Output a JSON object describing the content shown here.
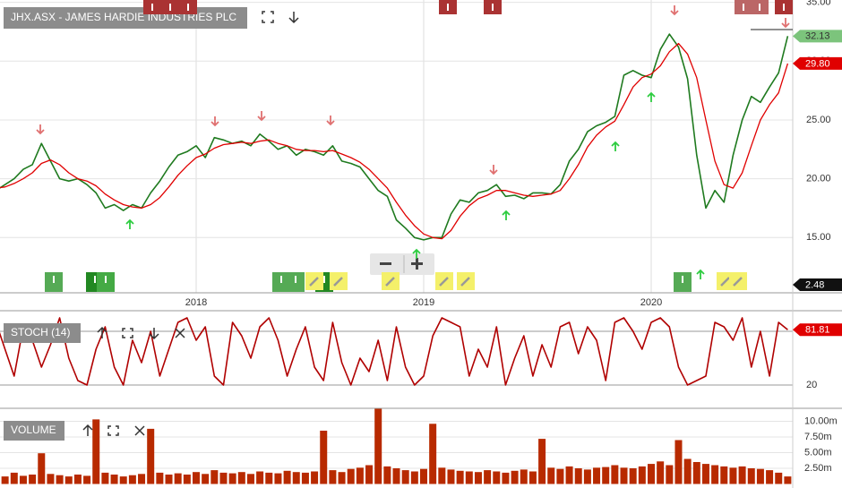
{
  "chart_data": [
    {
      "type": "line",
      "title": "JHX.ASX - JAMES HARDIE INDUSTRIES PLC",
      "categories": [
        null,
        null,
        null,
        null,
        null,
        null,
        null,
        null,
        null,
        null,
        null,
        null,
        null,
        null,
        null,
        null,
        null,
        null,
        null,
        null,
        null,
        null,
        "2018",
        null,
        null,
        null,
        null,
        null,
        null,
        null,
        null,
        null,
        null,
        null,
        null,
        null,
        null,
        null,
        null,
        null,
        null,
        null,
        null,
        null,
        null,
        null,
        null,
        "2019",
        null,
        null,
        null,
        null,
        null,
        null,
        null,
        null,
        null,
        null,
        null,
        null,
        null,
        null,
        null,
        null,
        null,
        null,
        null,
        null,
        null,
        null,
        null,
        null,
        "2020",
        null,
        null,
        null,
        null,
        null,
        null,
        null,
        null,
        null,
        null,
        null,
        null,
        null,
        null,
        null
      ],
      "series": [
        {
          "color": "#1f7a1f",
          "values": [
            19.0,
            19.5,
            20.0,
            20.8,
            21.2,
            23.0,
            21.5,
            20.0,
            19.8,
            20.0,
            19.5,
            18.8,
            17.5,
            17.8,
            17.3,
            17.8,
            17.5,
            18.8,
            19.8,
            21.0,
            22.0,
            22.3,
            22.8,
            21.8,
            23.5,
            23.3,
            23.0,
            23.2,
            22.8,
            23.8,
            23.2,
            22.5,
            22.8,
            22.0,
            22.5,
            22.3,
            22.0,
            22.8,
            21.5,
            21.3,
            21.0,
            20.0,
            19.0,
            18.5,
            16.5,
            15.8,
            15.0,
            14.8,
            15.0,
            15.0,
            17.0,
            18.2,
            18.0,
            18.8,
            19.0,
            19.5,
            18.5,
            18.6,
            18.3,
            18.8,
            18.8,
            18.7,
            19.5,
            21.5,
            22.5,
            24.0,
            24.5,
            24.8,
            25.3,
            28.8,
            29.2,
            28.8,
            28.6,
            31.0,
            32.3,
            31.2,
            28.5,
            22.0,
            17.5,
            19.0,
            18.0,
            22.0,
            25.0,
            27.0,
            26.5,
            27.8,
            29.0,
            32.13
          ]
        },
        {
          "color": "#e00000",
          "values": [
            19.2,
            19.3,
            19.6,
            20.0,
            20.5,
            21.3,
            21.6,
            21.2,
            20.5,
            20.0,
            19.8,
            19.4,
            18.7,
            18.2,
            17.8,
            17.6,
            17.5,
            17.8,
            18.4,
            19.3,
            20.3,
            21.1,
            21.8,
            22.1,
            22.6,
            22.9,
            23.0,
            23.1,
            23.0,
            23.2,
            23.3,
            23.0,
            22.8,
            22.5,
            22.4,
            22.4,
            22.3,
            22.4,
            22.1,
            21.8,
            21.4,
            20.8,
            20.0,
            19.2,
            18.0,
            16.9,
            16.0,
            15.3,
            15.0,
            14.9,
            15.6,
            16.8,
            17.7,
            18.3,
            18.6,
            19.0,
            19.0,
            18.8,
            18.6,
            18.5,
            18.6,
            18.7,
            19.0,
            20.0,
            21.2,
            22.7,
            23.7,
            24.4,
            24.9,
            26.3,
            27.8,
            28.6,
            28.9,
            29.6,
            30.8,
            31.5,
            30.6,
            28.6,
            25.0,
            21.5,
            19.5,
            19.2,
            20.5,
            22.8,
            25.0,
            26.3,
            27.3,
            29.8
          ]
        }
      ],
      "ylim": [
        10.3,
        35.2
      ],
      "yticks": [
        {
          "value": 15,
          "label": "15.00"
        },
        {
          "value": 20,
          "label": "20.00"
        },
        {
          "value": 25,
          "label": "25.00"
        },
        {
          "value": 30,
          "label": "30.00"
        },
        {
          "value": 35,
          "label": "35.00"
        }
      ],
      "price_tags": [
        {
          "value": 32.13,
          "label": "32.13",
          "color": "#7cc47c"
        },
        {
          "value": 29.8,
          "label": "29.80",
          "color": "#e00000"
        }
      ],
      "indicator_tag": "2.48",
      "grid": true
    },
    {
      "type": "line",
      "title": "STOCH (14)",
      "series": [
        {
          "color": "#b00000",
          "values": [
            90,
            60,
            30,
            85,
            70,
            40,
            65,
            95,
            50,
            25,
            20,
            60,
            85,
            40,
            20,
            70,
            45,
            80,
            30,
            60,
            90,
            95,
            70,
            85,
            30,
            20,
            90,
            75,
            50,
            85,
            95,
            70,
            30,
            60,
            85,
            40,
            25,
            90,
            45,
            20,
            50,
            35,
            70,
            25,
            85,
            40,
            20,
            30,
            75,
            95,
            90,
            85,
            30,
            60,
            40,
            85,
            20,
            50,
            75,
            30,
            65,
            40,
            85,
            90,
            55,
            85,
            70,
            25,
            90,
            95,
            80,
            60,
            90,
            95,
            85,
            40,
            20,
            25,
            30,
            90,
            85,
            70,
            95,
            40,
            80,
            30,
            90,
            81.81
          ]
        }
      ],
      "ylim": [
        -6,
        103
      ],
      "yticks": [
        20
      ],
      "level": 80,
      "grid": true
    },
    {
      "type": "bar",
      "title": "VOLUME",
      "color": "#b82a00",
      "values": [
        1.5,
        1.2,
        1.8,
        1.3,
        1.5,
        4.9,
        1.6,
        1.4,
        1.2,
        1.5,
        1.3,
        10.3,
        1.8,
        1.5,
        1.2,
        1.4,
        1.6,
        8.8,
        1.8,
        1.5,
        1.7,
        1.5,
        1.9,
        1.6,
        2.2,
        1.8,
        1.7,
        1.9,
        1.6,
        2.0,
        1.8,
        1.7,
        2.1,
        1.9,
        1.8,
        2.0,
        8.5,
        2.2,
        1.9,
        2.4,
        2.6,
        3.0,
        12.0,
        2.8,
        2.5,
        2.2,
        2.0,
        2.4,
        9.6,
        2.6,
        2.3,
        2.1,
        2.0,
        1.9,
        2.2,
        2.0,
        1.8,
        2.1,
        2.3,
        2.0,
        7.2,
        2.6,
        2.4,
        2.8,
        2.5,
        2.3,
        2.6,
        2.7,
        3.0,
        2.6,
        2.5,
        2.8,
        3.2,
        3.6,
        3.0,
        7.0,
        4.0,
        3.5,
        3.2,
        3.0,
        2.8,
        2.6,
        2.8,
        2.5,
        2.4,
        2.2,
        1.8,
        1.2
      ],
      "ylim": [
        0,
        12.07
      ],
      "yticks": [
        {
          "value": 2.5,
          "label": "2.50m"
        },
        {
          "value": 5,
          "label": "5.00m"
        },
        {
          "value": 7.5,
          "label": "7.50m"
        },
        {
          "value": 10,
          "label": "10.00m"
        }
      ]
    }
  ]
}
